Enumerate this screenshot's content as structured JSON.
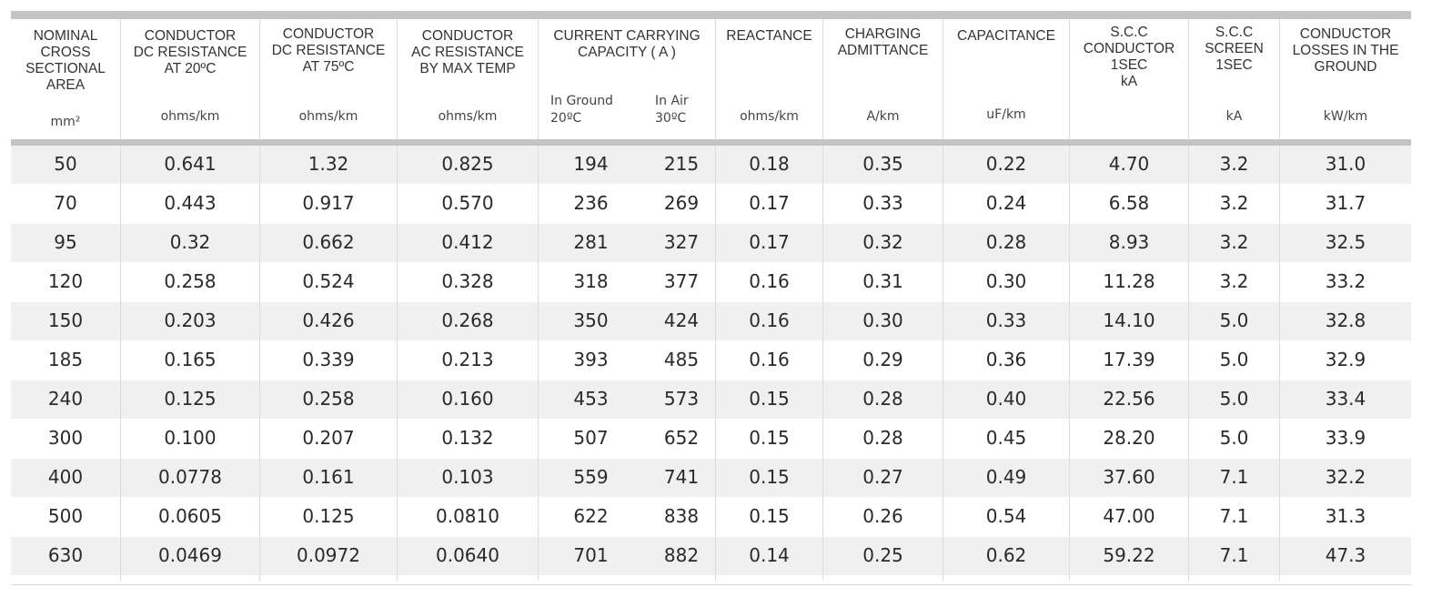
{
  "headers": [
    {
      "title": "NOMINAL\nCROSS\nSECTIONAL\nAREA",
      "unit": "mm²"
    },
    {
      "title": "CONDUCTOR\nDC RESISTANCE\nAT 20ºC",
      "unit": "ohms/km"
    },
    {
      "title": "CONDUCTOR\nDC RESISTANCE\nAT 75ºC",
      "unit": "ohms/km"
    },
    {
      "title": "CONDUCTOR\nAC RESISTANCE\nBY MAX TEMP",
      "unit": "ohms/km"
    },
    {
      "title": "CURRENT CARRYING\nCAPACITY ( A )",
      "unit": ""
    },
    {
      "title": "REACTANCE",
      "unit": "ohms/km"
    },
    {
      "title": "CHARGING\nADMITTANCE",
      "unit": "A/km"
    },
    {
      "title": "CAPACITANCE",
      "unit": "uF/km"
    },
    {
      "title": "S.C.C\nCONDUCTOR\n1SEC\nkA",
      "unit": ""
    },
    {
      "title": "S.C.C\nSCREEN\n1SEC",
      "unit": "kA"
    },
    {
      "title": "CONDUCTOR\nLOSSES IN THE\nGROUND",
      "unit": "kW/km"
    }
  ],
  "capacity_subheaders": {
    "ground": "In Ground\n20ºC",
    "air": "In Air\n30ºC"
  },
  "rows": [
    [
      "50",
      "0.641",
      "1.32",
      "0.825",
      "194",
      "215",
      "0.18",
      "0.35",
      "0.22",
      "4.70",
      "3.2",
      "31.0"
    ],
    [
      "70",
      "0.443",
      "0.917",
      "0.570",
      "236",
      "269",
      "0.17",
      "0.33",
      "0.24",
      "6.58",
      "3.2",
      "31.7"
    ],
    [
      "95",
      "0.32",
      "0.662",
      "0.412",
      "281",
      "327",
      "0.17",
      "0.32",
      "0.28",
      "8.93",
      "3.2",
      "32.5"
    ],
    [
      "120",
      "0.258",
      "0.524",
      "0.328",
      "318",
      "377",
      "0.16",
      "0.31",
      "0.30",
      "11.28",
      "3.2",
      "33.2"
    ],
    [
      "150",
      "0.203",
      "0.426",
      "0.268",
      "350",
      "424",
      "0.16",
      "0.30",
      "0.33",
      "14.10",
      "5.0",
      "32.8"
    ],
    [
      "185",
      "0.165",
      "0.339",
      "0.213",
      "393",
      "485",
      "0.16",
      "0.29",
      "0.36",
      "17.39",
      "5.0",
      "32.9"
    ],
    [
      "240",
      "0.125",
      "0.258",
      "0.160",
      "453",
      "573",
      "0.15",
      "0.28",
      "0.40",
      "22.56",
      "5.0",
      "33.4"
    ],
    [
      "300",
      "0.100",
      "0.207",
      "0.132",
      "507",
      "652",
      "0.15",
      "0.28",
      "0.45",
      "28.20",
      "5.0",
      "33.9"
    ],
    [
      "400",
      "0.0778",
      "0.161",
      "0.103",
      "559",
      "741",
      "0.15",
      "0.27",
      "0.49",
      "37.60",
      "7.1",
      "32.2"
    ],
    [
      "500",
      "0.0605",
      "0.125",
      "0.0810",
      "622",
      "838",
      "0.15",
      "0.26",
      "0.54",
      "47.00",
      "7.1",
      "31.3"
    ],
    [
      "630",
      "0.0469",
      "0.0972",
      "0.0640",
      "701",
      "882",
      "0.14",
      "0.25",
      "0.62",
      "59.22",
      "7.1",
      "47.3"
    ]
  ]
}
